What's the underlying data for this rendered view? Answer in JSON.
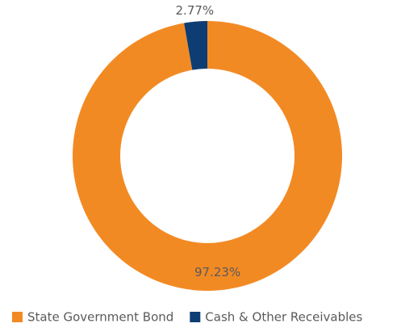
{
  "chart_data": {
    "type": "donut",
    "categories": [
      "State Government Bond",
      "Cash & Other Receivables"
    ],
    "values": [
      97.23,
      2.77
    ],
    "value_labels": [
      "97.23%",
      "2.77%"
    ],
    "colors": [
      "#f28a24",
      "#0e3d73"
    ],
    "legend": "bottom"
  }
}
